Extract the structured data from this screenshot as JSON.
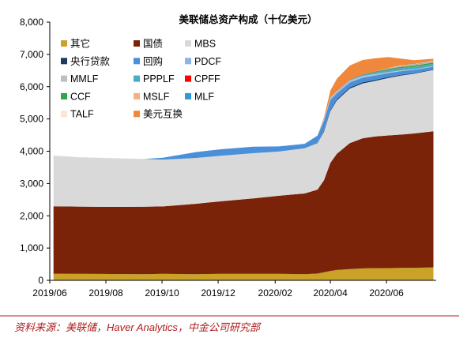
{
  "chart_data": {
    "type": "area",
    "stacked": true,
    "title": "美联储总资产构成（十亿美元）",
    "xlabel": "",
    "ylabel": "",
    "ylim": [
      0,
      8000
    ],
    "yticks": [
      0,
      1000,
      2000,
      3000,
      4000,
      5000,
      6000,
      7000,
      8000
    ],
    "ytick_labels": [
      "0",
      "1,000",
      "2,000",
      "3,000",
      "4,000",
      "5,000",
      "6,000",
      "7,000",
      "8,000"
    ],
    "xtick_labels": [
      "2019/06",
      "2019/08",
      "2019/10",
      "2019/12",
      "2020/02",
      "2020/04",
      "2020/06"
    ],
    "xtick_dates": [
      "2019-06-01",
      "2019-08-01",
      "2019-10-01",
      "2019-12-01",
      "2020-02-01",
      "2020-04-01",
      "2020-06-01"
    ],
    "grid": false,
    "legend_position": "top-left, inside",
    "x": [
      "2019-06-05",
      "2019-07-03",
      "2019-08-07",
      "2019-09-11",
      "2019-10-02",
      "2019-11-06",
      "2019-12-04",
      "2020-01-08",
      "2020-02-05",
      "2020-03-04",
      "2020-03-18",
      "2020-03-25",
      "2020-04-01",
      "2020-04-08",
      "2020-04-22",
      "2020-05-06",
      "2020-05-20",
      "2020-06-03",
      "2020-06-17",
      "2020-07-01",
      "2020-07-22"
    ],
    "series": [
      {
        "name": "其它",
        "color": "#c9a227",
        "values": [
          205,
          200,
          195,
          190,
          200,
          190,
          200,
          200,
          200,
          190,
          210,
          250,
          290,
          320,
          350,
          370,
          380,
          380,
          385,
          390,
          400
        ]
      },
      {
        "name": "国债",
        "color": "#7a2308",
        "values": [
          2090,
          2085,
          2080,
          2090,
          2090,
          2180,
          2250,
          2340,
          2420,
          2500,
          2600,
          2850,
          3350,
          3600,
          3900,
          4030,
          4080,
          4110,
          4130,
          4160,
          4220
        ]
      },
      {
        "name": "MBS",
        "color": "#d9d9d9",
        "values": [
          1570,
          1530,
          1510,
          1480,
          1450,
          1420,
          1410,
          1400,
          1370,
          1400,
          1440,
          1510,
          1600,
          1650,
          1690,
          1700,
          1720,
          1780,
          1830,
          1850,
          1900
        ]
      },
      {
        "name": "央行贷款",
        "color": "#1f3864",
        "values": [
          0,
          0,
          0,
          0,
          0,
          0,
          0,
          0,
          0,
          0,
          10,
          30,
          40,
          40,
          35,
          35,
          35,
          30,
          25,
          20,
          20
        ]
      },
      {
        "name": "回购",
        "color": "#4a90d9",
        "values": [
          0,
          0,
          0,
          0,
          60,
          180,
          200,
          200,
          160,
          140,
          220,
          300,
          310,
          180,
          150,
          140,
          130,
          120,
          110,
          100,
          80
        ]
      },
      {
        "name": "PDCF",
        "color": "#8db3e2",
        "values": [
          0,
          0,
          0,
          0,
          0,
          0,
          0,
          0,
          0,
          0,
          10,
          25,
          30,
          30,
          30,
          25,
          20,
          15,
          10,
          5,
          5
        ]
      },
      {
        "name": "MMLF",
        "color": "#bfbfbf",
        "values": [
          0,
          0,
          0,
          0,
          0,
          0,
          0,
          0,
          0,
          0,
          0,
          30,
          40,
          40,
          35,
          30,
          25,
          20,
          15,
          12,
          10
        ]
      },
      {
        "name": "PPPLF",
        "color": "#4bacc6",
        "values": [
          0,
          0,
          0,
          0,
          0,
          0,
          0,
          0,
          0,
          0,
          0,
          0,
          0,
          0,
          20,
          40,
          50,
          60,
          70,
          70,
          70
        ]
      },
      {
        "name": "CPFF",
        "color": "#ff0000",
        "values": [
          0,
          0,
          0,
          0,
          0,
          0,
          0,
          0,
          0,
          0,
          0,
          0,
          0,
          5,
          5,
          5,
          5,
          5,
          5,
          5,
          5
        ]
      },
      {
        "name": "CCF",
        "color": "#2ea44f",
        "values": [
          0,
          0,
          0,
          0,
          0,
          0,
          0,
          0,
          0,
          0,
          0,
          0,
          0,
          0,
          0,
          10,
          20,
          30,
          35,
          40,
          40
        ]
      },
      {
        "name": "MSLF",
        "color": "#f4b183",
        "values": [
          0,
          0,
          0,
          0,
          0,
          0,
          0,
          0,
          0,
          0,
          0,
          0,
          0,
          0,
          0,
          0,
          0,
          10,
          20,
          25,
          30
        ]
      },
      {
        "name": "MLF",
        "color": "#2e9bd6",
        "values": [
          0,
          0,
          0,
          0,
          0,
          0,
          0,
          0,
          0,
          0,
          0,
          0,
          0,
          0,
          0,
          0,
          5,
          10,
          15,
          15,
          15
        ]
      },
      {
        "name": "TALF",
        "color": "#fbe5d6",
        "values": [
          0,
          0,
          0,
          0,
          0,
          0,
          0,
          0,
          0,
          0,
          0,
          0,
          0,
          0,
          0,
          0,
          0,
          5,
          10,
          10,
          10
        ]
      },
      {
        "name": "美元互换",
        "color": "#f0883c",
        "values": [
          0,
          0,
          0,
          0,
          0,
          0,
          0,
          0,
          0,
          0,
          0,
          50,
          220,
          380,
          440,
          440,
          410,
          340,
          210,
          120,
          60
        ]
      }
    ]
  },
  "source_note": "资料来源：美联储，Haver Analytics，中金公司研究部"
}
